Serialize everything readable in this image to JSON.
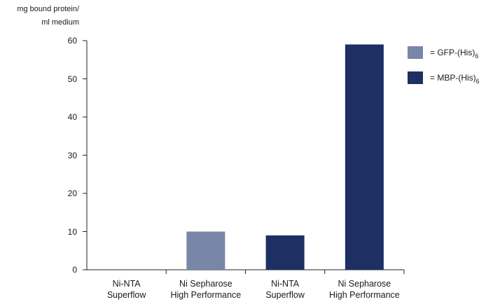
{
  "chart_data": {
    "type": "bar",
    "ylabel_line1": "mg bound protein/",
    "ylabel_line2": "ml medium",
    "ylim": [
      0,
      60
    ],
    "yticks": [
      0,
      10,
      20,
      30,
      40,
      50,
      60
    ],
    "categories": [
      {
        "line1": "Ni-NTA",
        "line2": "Superflow"
      },
      {
        "line1": "Ni Sepharose",
        "line2": "High Performance"
      },
      {
        "line1": "Ni-NTA",
        "line2": "Superflow"
      },
      {
        "line1": "Ni Sepharose",
        "line2": "High Performance"
      }
    ],
    "series": [
      {
        "name": "GFP-(His)6",
        "legend_prefix": "= GFP-(His)",
        "legend_sub": "6",
        "color": "#7a86a8",
        "values": [
          0,
          10,
          null,
          null
        ]
      },
      {
        "name": "MBP-(His)6",
        "legend_prefix": "= MBP-(His)",
        "legend_sub": "6",
        "color": "#1e2f64",
        "values": [
          null,
          null,
          9,
          59
        ]
      }
    ],
    "grid": false,
    "legend_position": "top-right"
  }
}
